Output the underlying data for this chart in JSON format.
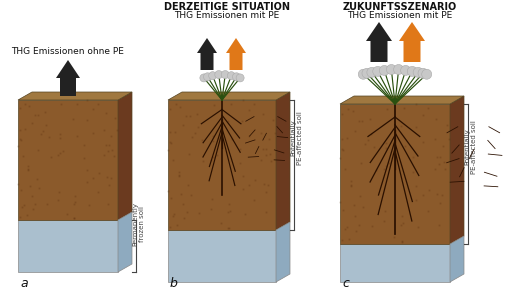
{
  "bg_color": "#ffffff",
  "soil_brown": "#8B5A2B",
  "soil_brown_dark": "#6B3A1F",
  "soil_top_color": "#A07840",
  "frozen_blue": "#AABFCE",
  "frozen_blue_right": "#8EAABF",
  "frozen_blue_top": "#C0D4E0",
  "arrow_black": "#222222",
  "arrow_orange": "#E07818",
  "root_color": "#2a1000",
  "plant_color": "#2a5010",
  "label_a": "a",
  "label_b": "b",
  "label_c": "c",
  "text_a": "THG Emissionen ohne PE",
  "title_b_bold": "DERZEITIGE SITUATION",
  "title_b_normal": "THG Emissionen mit PE",
  "title_c_bold": "ZUKUNFTSSZENARIO",
  "title_c_normal": "THG Emissionen mit PE",
  "bracket_text_b": "Potentially\nPE-affected soil",
  "bracket_text_c": "Potentially\nPE-affected soil",
  "bracket_text_a": "Permanently\nfrozen soil"
}
